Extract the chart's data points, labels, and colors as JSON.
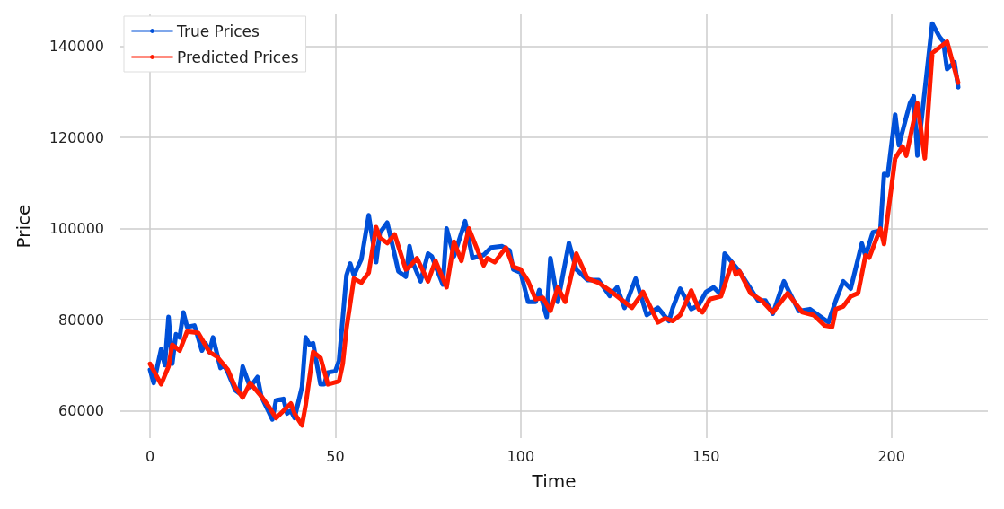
{
  "chart_data": {
    "type": "line",
    "xlabel": "Time",
    "ylabel": "Price",
    "xlim": [
      -8,
      226
    ],
    "ylim": [
      54000,
      147000
    ],
    "xticks": [
      0,
      50,
      100,
      150,
      200
    ],
    "yticks": [
      60000,
      80000,
      100000,
      120000,
      140000
    ],
    "grid": true,
    "legend": "top left",
    "marker": "none",
    "line_style": "solid",
    "series": [
      {
        "name": "True Prices",
        "color": "#0050d8",
        "x": [
          0,
          1,
          3,
          4,
          5,
          6,
          7,
          8,
          9,
          10,
          12,
          14,
          15,
          16,
          17,
          19,
          20,
          21,
          23,
          24,
          25,
          27,
          29,
          30,
          33,
          34,
          36,
          37,
          38,
          39,
          41,
          42,
          43,
          44,
          46,
          47,
          48,
          50,
          51,
          53,
          54,
          55,
          57,
          59,
          61,
          62,
          64,
          66,
          67,
          69,
          70,
          71,
          73,
          75,
          76,
          79,
          80,
          82,
          85,
          87,
          90,
          92,
          95,
          97,
          98,
          100,
          102,
          104,
          105,
          107,
          108,
          110,
          113,
          115,
          118,
          121,
          124,
          126,
          128,
          131,
          134,
          137,
          140,
          141,
          143,
          146,
          148,
          150,
          152,
          154,
          155,
          159,
          162,
          164,
          166,
          168,
          171,
          175,
          178,
          183,
          185,
          187,
          189,
          192,
          193,
          195,
          197,
          198,
          199,
          201,
          202,
          205,
          206,
          207,
          208,
          211,
          213,
          214,
          215,
          217,
          218
        ],
        "values": [
          69000,
          66100,
          73500,
          70000,
          80600,
          70300,
          76800,
          76100,
          81600,
          78400,
          78700,
          73200,
          74800,
          72900,
          76100,
          69400,
          70000,
          68400,
          64500,
          63900,
          69700,
          65200,
          67400,
          63200,
          58100,
          62300,
          62600,
          59400,
          60000,
          58400,
          65200,
          76100,
          74500,
          74800,
          65800,
          65800,
          68400,
          68700,
          71000,
          89700,
          92300,
          89700,
          93200,
          102900,
          92600,
          99000,
          101300,
          94200,
          90600,
          89400,
          96100,
          92300,
          88400,
          94500,
          93900,
          87700,
          100000,
          93900,
          101600,
          93500,
          94200,
          95800,
          96100,
          95200,
          91000,
          90300,
          83900,
          83900,
          86500,
          80600,
          93500,
          83900,
          96800,
          91000,
          88700,
          88700,
          85200,
          87100,
          82600,
          89000,
          81000,
          82600,
          79700,
          82600,
          86800,
          82300,
          83200,
          86100,
          87100,
          85500,
          94500,
          90600,
          86800,
          84200,
          84200,
          81300,
          88400,
          81900,
          82300,
          79400,
          84200,
          88400,
          86800,
          96700,
          94000,
          99200,
          99500,
          112000,
          111700,
          125000,
          118300,
          127500,
          129000,
          116000,
          123000,
          145000,
          142000,
          141000,
          135000,
          136500,
          131000
        ]
      },
      {
        "name": "Predicted Prices",
        "color": "#ff1a00",
        "x": [
          0,
          3,
          5,
          6,
          8,
          10,
          13,
          16,
          18,
          21,
          23,
          25,
          27,
          30,
          32,
          34,
          38,
          39,
          41,
          42,
          44,
          46,
          48,
          51,
          52,
          53,
          55,
          57,
          59,
          61,
          62,
          64,
          66,
          69,
          70,
          72,
          75,
          77,
          80,
          82,
          84,
          86,
          90,
          91,
          93,
          96,
          98,
          100,
          102,
          104,
          106,
          108,
          110,
          112,
          115,
          118,
          121,
          124,
          127,
          130,
          133,
          137,
          139,
          141,
          143,
          146,
          148,
          149,
          151,
          154,
          157,
          158,
          159,
          162,
          165,
          168,
          172,
          176,
          179,
          182,
          184,
          185,
          187,
          189,
          191,
          193,
          194,
          197,
          198,
          201,
          203,
          204,
          207,
          209,
          211,
          215,
          218
        ],
        "values": [
          70300,
          65800,
          69700,
          74500,
          73200,
          77400,
          77100,
          72900,
          71900,
          69000,
          65200,
          62900,
          66100,
          63200,
          61000,
          58400,
          61600,
          59400,
          56800,
          61300,
          72900,
          71600,
          65800,
          66500,
          70300,
          78000,
          89000,
          88100,
          90300,
          100300,
          98000,
          96800,
          98700,
          91000,
          91600,
          93500,
          88400,
          92900,
          87100,
          97100,
          92900,
          100000,
          91900,
          93500,
          92600,
          95800,
          91600,
          91000,
          88400,
          84500,
          84800,
          81900,
          87100,
          83900,
          94500,
          89000,
          88100,
          86400,
          84500,
          82600,
          86100,
          79400,
          80300,
          79700,
          81000,
          86400,
          82300,
          81600,
          84500,
          85100,
          92500,
          89900,
          90600,
          85800,
          84200,
          81600,
          85800,
          81600,
          81000,
          78700,
          78400,
          82300,
          82900,
          85100,
          85800,
          94100,
          93600,
          100000,
          96600,
          115400,
          118000,
          116000,
          127500,
          115400,
          138500,
          141000,
          132000
        ]
      }
    ]
  }
}
